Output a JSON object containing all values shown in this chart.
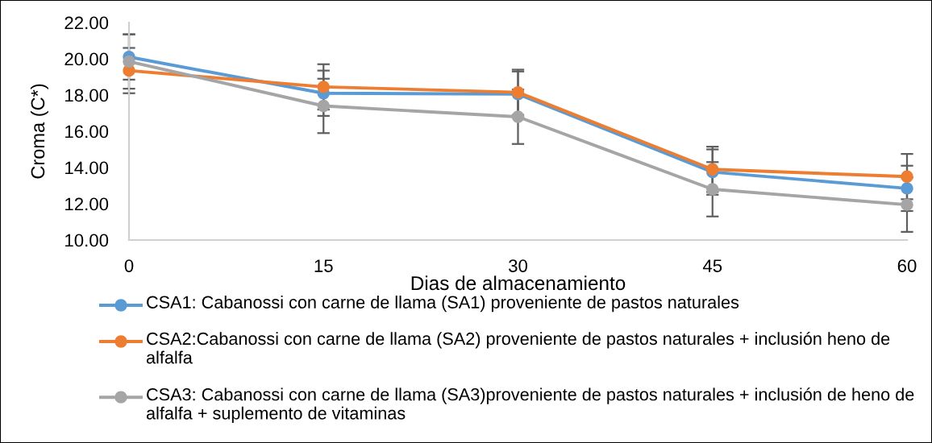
{
  "chart_data": {
    "type": "line",
    "xlabel": "Dias de almacenamiento",
    "ylabel": "Croma (C*)",
    "categories": [
      "0",
      "15",
      "30",
      "45",
      "60"
    ],
    "series": [
      {
        "name": "CSA1: Cabanossi con carne de llama (SA1) proveniente de pastos naturales",
        "color": "#5b9bd5",
        "values": [
          20.1,
          18.1,
          18.05,
          13.75,
          12.85
        ],
        "errors": [
          1.25,
          1.25,
          1.25,
          1.25,
          1.25
        ]
      },
      {
        "name": "CSA2:Cabanossi con carne de llama (SA2) proveniente de pastos naturales + inclusión heno de alfalfa",
        "color": "#ed7d31",
        "values": [
          19.35,
          18.45,
          18.15,
          13.9,
          13.5
        ],
        "errors": [
          1.25,
          1.25,
          1.25,
          1.25,
          1.25
        ]
      },
      {
        "name": "CSA3: Cabanossi con carne de llama (SA3)proveniente de pastos naturales + inclusión de heno de alfalfa + suplemento de vitaminas",
        "color": "#a5a5a5",
        "values": [
          19.85,
          17.4,
          16.8,
          12.8,
          11.95
        ],
        "errors": [
          1.5,
          1.5,
          1.5,
          1.5,
          1.5
        ]
      }
    ],
    "ylim": [
      10,
      22
    ],
    "yticks": [
      {
        "value": 10,
        "label": "10.00"
      },
      {
        "value": 12,
        "label": "12.00"
      },
      {
        "value": 14,
        "label": "14.00"
      },
      {
        "value": 16,
        "label": "16.00"
      },
      {
        "value": 18,
        "label": "18.00"
      },
      {
        "value": 20,
        "label": "20.00"
      },
      {
        "value": 22,
        "label": "22.00"
      }
    ],
    "marker": "circle",
    "legend": "bottom"
  }
}
